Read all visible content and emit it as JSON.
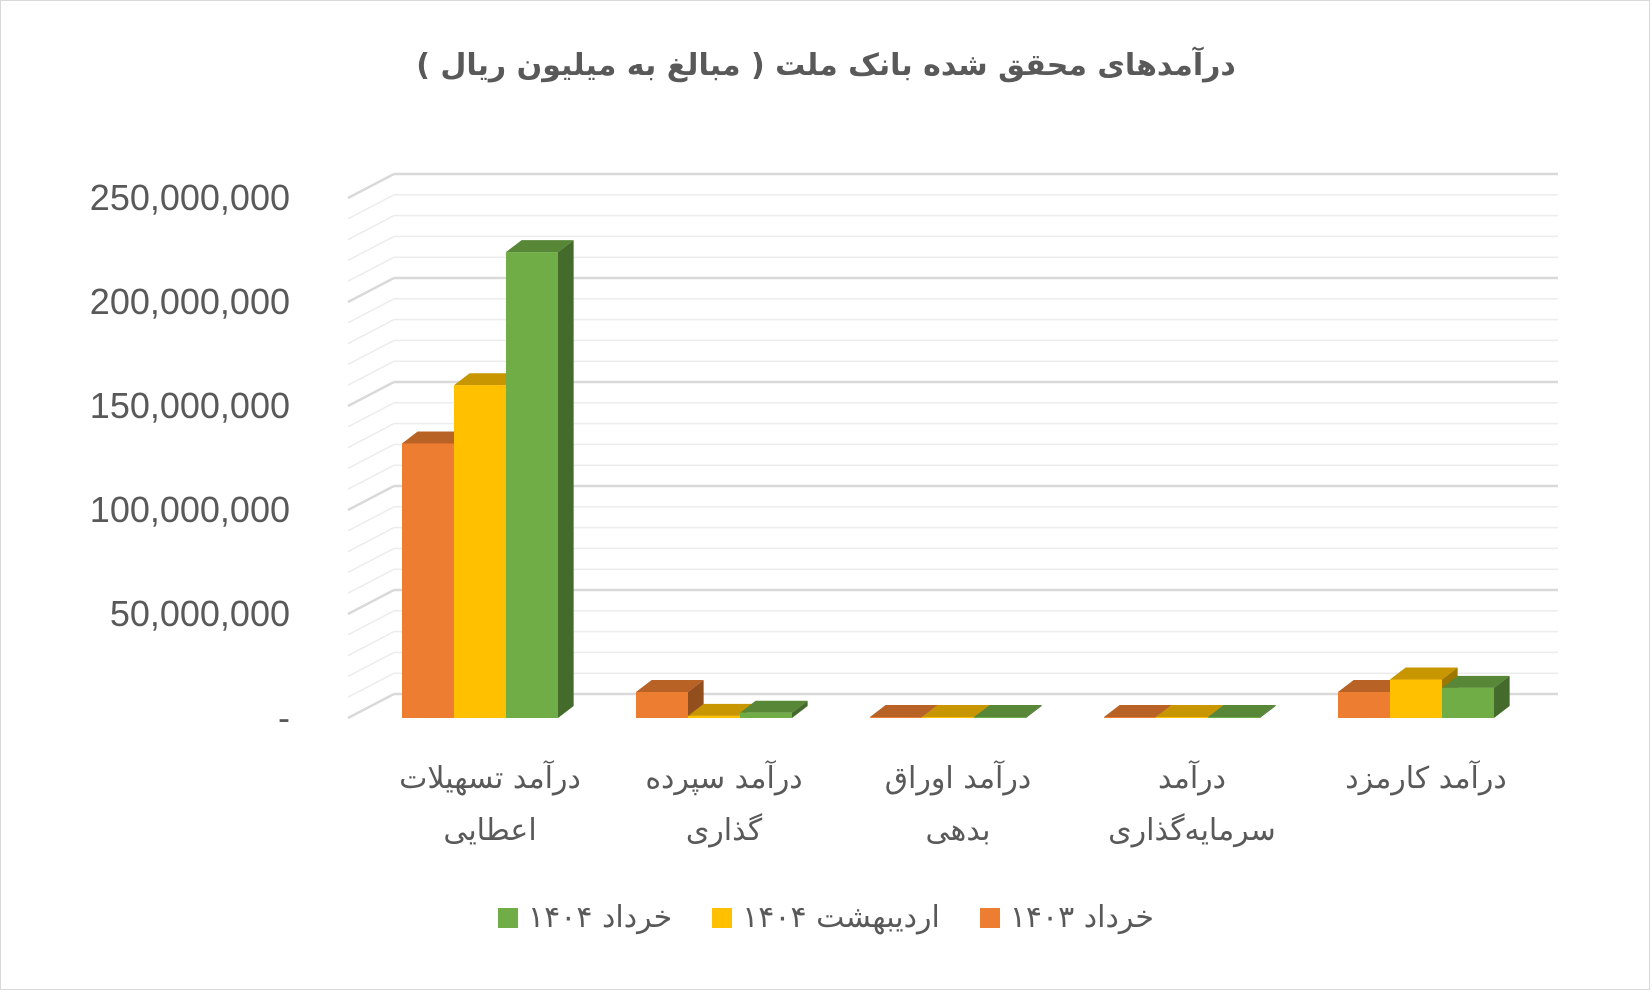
{
  "chart_data": {
    "type": "bar",
    "title": "درآمدهای محقق شده بانک  ملت  ( مبالغ به میلیون ریال )",
    "categories": [
      [
        "درآمد تسهیلات",
        "اعطایی"
      ],
      [
        "درآمد سپرده",
        "گذاری"
      ],
      [
        "درآمد اوراق",
        "بدهی"
      ],
      [
        "درآمد",
        "سرمایه‌گذاری"
      ],
      [
        "درآمد کارمزد"
      ]
    ],
    "series": [
      {
        "name": "خرداد ۱۴۰۳",
        "color": "#ED7D31",
        "values": [
          132000000,
          12500000,
          300000,
          200000,
          12500000
        ]
      },
      {
        "name": "اردیبهشت ۱۴۰۴",
        "color": "#FFC000",
        "values": [
          160000000,
          1000000,
          300000,
          200000,
          18500000
        ]
      },
      {
        "name": "خرداد ۱۴۰۴",
        "color": "#70AD47",
        "values": [
          224000000,
          2500000,
          300000,
          200000,
          14500000
        ]
      }
    ],
    "ytick_labels": [
      "-",
      "50,000,000",
      "100,000,000",
      "150,000,000",
      "200,000,000",
      "250,000,000"
    ],
    "ylim": [
      0,
      250000000
    ],
    "legend_position": "bottom",
    "grid": true
  }
}
